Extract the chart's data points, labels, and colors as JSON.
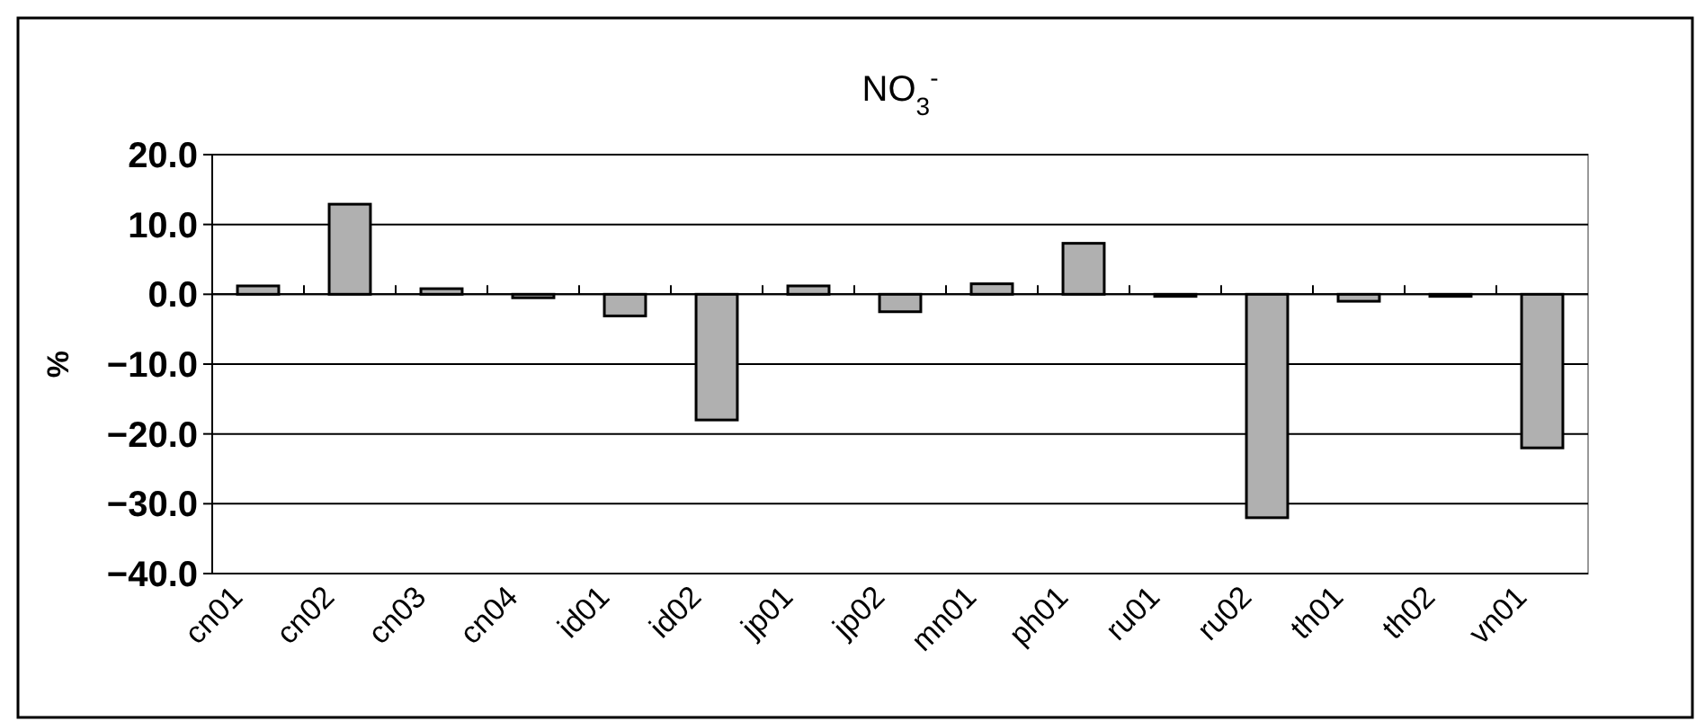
{
  "chart_data": {
    "type": "bar",
    "title": "NO$_{3}$$^{-}$",
    "ylabel": "%",
    "categories": [
      "cn01",
      "cn02",
      "cn03",
      "cn04",
      "id01",
      "id02",
      "jp01",
      "jp02",
      "mn01",
      "ph01",
      "ru01",
      "ru02",
      "th01",
      "th02",
      "vn01"
    ],
    "values": [
      1.2,
      12.9,
      0.8,
      -0.5,
      -3.1,
      -18,
      1.2,
      -2.5,
      1.5,
      7.3,
      -0.3,
      -32,
      -1,
      -0.3,
      -22
    ],
    "color": "#b0b0b0",
    "ylim": [
      -40,
      20
    ],
    "yticks": [
      {
        "value": 20,
        "label": "20.0"
      },
      {
        "value": 10,
        "label": "10.0"
      },
      {
        "value": 0,
        "label": "0.0"
      },
      {
        "value": -10,
        "label": "−10.0"
      },
      {
        "value": -20,
        "label": "−20.0"
      },
      {
        "value": -30,
        "label": "−30.0"
      },
      {
        "value": -40,
        "label": "−40.0"
      }
    ],
    "grid": "y"
  }
}
